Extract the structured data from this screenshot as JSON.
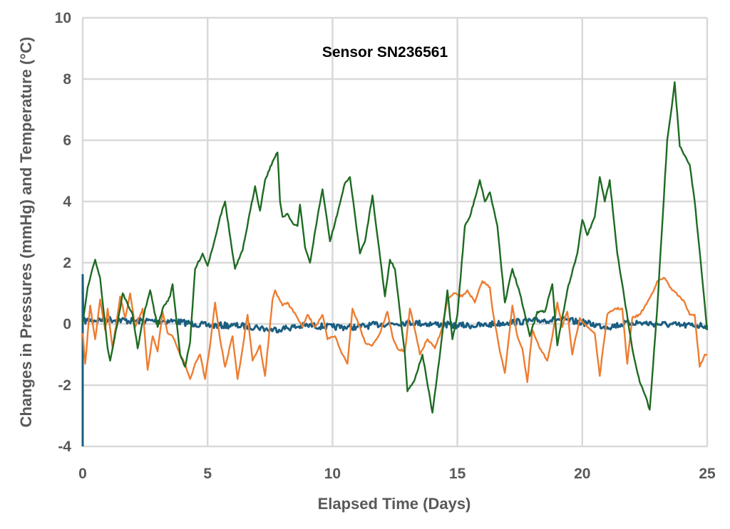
{
  "chart_data": {
    "type": "line",
    "title": "Sensor SN236561",
    "xlabel": "Elapsed Time (Days)",
    "ylabel": "Changes in  Pressures (mmHg) and Temperature (°C)",
    "xlim": [
      0,
      25
    ],
    "ylim": [
      -4,
      10
    ],
    "xticks": [
      0,
      5,
      10,
      15,
      20,
      25
    ],
    "yticks": [
      -4,
      -2,
      0,
      2,
      4,
      6,
      8,
      10
    ],
    "xtick_labels": [
      "0",
      "5",
      "10",
      "15",
      "20",
      "25"
    ],
    "ytick_labels": [
      "-4",
      "-2",
      "0",
      "2",
      "4",
      "6",
      "8",
      "10"
    ],
    "grid": true,
    "legend": "none",
    "series": [
      {
        "color": "#1a5e82",
        "x": [
          0,
          0,
          0.02,
          1,
          2,
          3,
          3.5,
          4.5,
          5,
          6,
          7,
          7.5,
          8,
          9,
          10,
          11,
          12,
          13,
          14,
          15,
          16,
          17,
          18,
          19,
          20,
          21,
          22,
          23,
          24,
          25
        ],
        "y": [
          -4,
          1.6,
          0.1,
          0.15,
          0.1,
          0.1,
          0.1,
          0.0,
          -0.05,
          -0.05,
          -0.1,
          -0.2,
          -0.15,
          -0.05,
          -0.1,
          -0.1,
          0.0,
          0.05,
          0.0,
          -0.05,
          -0.05,
          0.05,
          0.1,
          0.15,
          0.05,
          -0.1,
          0.05,
          0.0,
          -0.05,
          -0.05
        ]
      },
      {
        "color": "#ed7d31",
        "x": [
          0,
          0.1,
          0.3,
          0.5,
          0.7,
          0.9,
          1,
          1.2,
          1.5,
          1.7,
          1.9,
          2.1,
          2.4,
          2.6,
          2.8,
          3,
          3.2,
          3.4,
          3.6,
          3.9,
          4.1,
          4.3,
          4.5,
          4.7,
          4.9,
          5.1,
          5.3,
          5.5,
          5.7,
          6,
          6.2,
          6.4,
          6.6,
          6.8,
          7.1,
          7.3,
          7.6,
          7.7,
          8,
          8.2,
          8.6,
          8.8,
          9,
          9.3,
          9.6,
          9.8,
          10.1,
          10.4,
          10.6,
          10.8,
          11.1,
          11.3,
          11.6,
          11.9,
          12.2,
          12.4,
          12.6,
          12.9,
          13.1,
          13.3,
          13.5,
          13.8,
          14.1,
          14.4,
          14.6,
          14.9,
          15.2,
          15.4,
          15.7,
          16,
          16.3,
          16.4,
          16.7,
          16.9,
          17.2,
          17.4,
          17.6,
          17.8,
          18,
          18.3,
          18.6,
          18.8,
          19,
          19.2,
          19.4,
          19.6,
          19.9,
          20.2,
          20.5,
          20.7,
          21,
          21.3,
          21.6,
          21.8,
          22,
          22.3,
          22.6,
          22.8,
          23,
          23.3,
          23.6,
          23.9,
          24.1,
          24.3,
          24.5,
          24.7,
          24.9,
          25
        ],
        "y": [
          -0.3,
          -1.3,
          0.6,
          -0.5,
          0.8,
          -0.2,
          0.5,
          -0.8,
          0.9,
          0.2,
          1.0,
          -0.1,
          0.5,
          -1.5,
          -0.4,
          -0.9,
          0.4,
          -0.3,
          -0.4,
          -1.0,
          -1.3,
          -1.8,
          -1.3,
          -1.0,
          -1.8,
          -0.7,
          0.7,
          -0.5,
          -1.4,
          -0.4,
          -1.8,
          -0.8,
          0.3,
          -1.2,
          -0.7,
          -1.7,
          0.8,
          1.1,
          0.6,
          0.7,
          0.2,
          -0.1,
          0.3,
          -0.1,
          0.3,
          -0.5,
          -0.4,
          -1.0,
          -1.3,
          0.5,
          -0.1,
          -0.6,
          -0.7,
          -0.3,
          0.4,
          -0.4,
          -0.8,
          -0.9,
          0.5,
          -0.2,
          -1.0,
          -0.5,
          -0.8,
          -0.1,
          0.8,
          1.0,
          0.9,
          1.1,
          0.7,
          1.4,
          1.2,
          0.5,
          -0.9,
          -1.6,
          0.6,
          -0.4,
          -0.8,
          -1.9,
          -0.2,
          -0.8,
          -1.2,
          -0.4,
          0.7,
          -0.1,
          0.4,
          -1.0,
          0.2,
          -0.1,
          -0.3,
          -1.7,
          0.3,
          0.5,
          0.5,
          -1.3,
          0.2,
          0.3,
          0.7,
          1.0,
          1.4,
          1.5,
          1.1,
          0.9,
          0.7,
          0.3,
          0.3,
          -1.4,
          -1.0,
          -1.0
        ]
      },
      {
        "color": "#1e6b22",
        "x": [
          0,
          0.2,
          0.5,
          0.7,
          1,
          1.1,
          1.5,
          1.6,
          2,
          2.2,
          2.5,
          2.7,
          3,
          3.2,
          3.5,
          3.6,
          3.9,
          4.1,
          4.3,
          4.5,
          4.8,
          5,
          5.3,
          5.5,
          5.7,
          6,
          6.1,
          6.4,
          6.9,
          7.1,
          7.3,
          7.6,
          7.8,
          7.9,
          8,
          8.2,
          8.4,
          8.6,
          8.7,
          8.9,
          9.1,
          9.4,
          9.6,
          9.9,
          10.1,
          10.5,
          10.7,
          11.1,
          11.3,
          11.6,
          12.1,
          12.3,
          12.5,
          12.9,
          13,
          13.3,
          13.6,
          14,
          14.3,
          14.6,
          14.8,
          15,
          15.3,
          15.5,
          15.9,
          16.1,
          16.3,
          16.6,
          16.9,
          17.2,
          17.5,
          17.9,
          18.2,
          18.5,
          18.8,
          19,
          19.4,
          19.8,
          20,
          20.2,
          20.5,
          20.7,
          20.9,
          21.1,
          21.4,
          21.6,
          22,
          22.3,
          22.5,
          22.7,
          23,
          23.4,
          23.6,
          23.7,
          23.9,
          24.1,
          24.3,
          24.5,
          24.8,
          25
        ],
        "y": [
          0,
          1.2,
          2.1,
          1.5,
          -0.8,
          -1.2,
          0.5,
          1.0,
          0.3,
          -0.8,
          0.5,
          1.1,
          -0.1,
          0.5,
          0.9,
          1.3,
          -1.0,
          -1.4,
          -0.6,
          1.8,
          2.3,
          1.9,
          2.8,
          3.5,
          4.0,
          2.3,
          1.8,
          2.4,
          4.5,
          3.7,
          4.7,
          5.3,
          5.6,
          4.0,
          3.5,
          3.6,
          3.3,
          3.2,
          3.9,
          2.5,
          2.0,
          3.5,
          4.4,
          2.7,
          3.3,
          4.6,
          4.8,
          2.3,
          2.7,
          4.2,
          0.9,
          2.1,
          1.8,
          -1.0,
          -2.2,
          -1.8,
          -1.0,
          -2.9,
          -1.0,
          1.1,
          -0.5,
          0.3,
          3.2,
          3.5,
          4.7,
          4.0,
          4.3,
          3.2,
          0.7,
          1.8,
          1.0,
          -0.4,
          0.4,
          0.4,
          1.3,
          -0.7,
          1.1,
          2.3,
          3.4,
          2.9,
          3.5,
          4.8,
          4.0,
          4.7,
          2.3,
          1.3,
          -0.8,
          -1.9,
          -2.3,
          -2.8,
          0.5,
          6.0,
          7.2,
          7.9,
          5.8,
          5.5,
          5.2,
          4.0,
          1.5,
          -0.2
        ]
      }
    ]
  }
}
